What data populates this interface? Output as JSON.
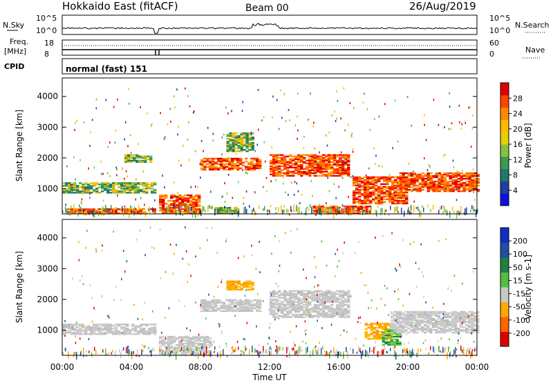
{
  "header": {
    "station": "Hokkaido East (fitACF)",
    "beam": "Beam 00",
    "date": "26/Aug/2019"
  },
  "top_panels": {
    "nsky_label": "N.Sky",
    "nsky_ticks": [
      "10^5",
      "10^0"
    ],
    "nsearch_label": "N.Search",
    "nsearch_ticks": [
      "10^5",
      "10^0"
    ],
    "freq_label_line1": "Freq.",
    "freq_label_line2": "[MHz]",
    "freq_ticks": [
      "18",
      "8"
    ],
    "nave_label": "Nave",
    "nave_ticks": [
      "60",
      "0"
    ],
    "cpid_label": "CPID",
    "cpid_value": "normal (fast) 151"
  },
  "chart_data": [
    {
      "type": "heatmap",
      "name": "power-panel",
      "ylabel": "Slant Range [km]",
      "yticks": [
        1000,
        2000,
        3000,
        4000
      ],
      "ylim": [
        180,
        4600
      ],
      "colorbar_label": "Power [dB]",
      "colorbar_ticks": [
        "28",
        "24",
        "20",
        "16",
        "12",
        "8",
        "4"
      ],
      "colorbar_colors": [
        "#e00000",
        "#ff4400",
        "#ff8800",
        "#ffbb00",
        "#e6d000",
        "#88c040",
        "#3a9a50",
        "#1e7a6a",
        "#2040a0",
        "#1010e0"
      ],
      "regions": [
        {
          "t0": 0.3,
          "t1": 5.4,
          "r0": 180,
          "r1": 320,
          "level": "high"
        },
        {
          "t0": 0.0,
          "t1": 5.4,
          "r0": 850,
          "r1": 1180,
          "level": "mid"
        },
        {
          "t0": 3.6,
          "t1": 5.2,
          "r0": 1850,
          "r1": 2100,
          "level": "mid"
        },
        {
          "t0": 5.6,
          "t1": 8.0,
          "r0": 180,
          "r1": 800,
          "level": "high"
        },
        {
          "t0": 8.0,
          "t1": 11.5,
          "r0": 1600,
          "r1": 2000,
          "level": "high"
        },
        {
          "t0": 9.5,
          "t1": 11.0,
          "r0": 2200,
          "r1": 2800,
          "level": "mid"
        },
        {
          "t0": 12.0,
          "t1": 16.6,
          "r0": 1400,
          "r1": 2100,
          "level": "high"
        },
        {
          "t0": 14.5,
          "t1": 17.8,
          "r0": 180,
          "r1": 450,
          "level": "high"
        },
        {
          "t0": 16.8,
          "t1": 20.0,
          "r0": 500,
          "r1": 1400,
          "level": "high"
        },
        {
          "t0": 19.5,
          "t1": 24.0,
          "r0": 900,
          "r1": 1500,
          "level": "high"
        },
        {
          "t0": 8.8,
          "t1": 10.2,
          "r0": 180,
          "r1": 400,
          "level": "mid"
        }
      ]
    },
    {
      "type": "heatmap",
      "name": "velocity-panel",
      "ylabel": "Slant Range [km]",
      "yticks": [
        1000,
        2000,
        3000,
        4000
      ],
      "ylim": [
        180,
        4600
      ],
      "colorbar_label": "Velocity [m s-1]",
      "colorbar_ticks": [
        "200",
        "100",
        "50",
        "15",
        "-15",
        "-50",
        "-100",
        "-200"
      ],
      "colorbar_colors": [
        "#1030c0",
        "#2050a0",
        "#208040",
        "#50c040",
        "#c8c8c8",
        "#ffaa00",
        "#ff6600",
        "#e00000"
      ],
      "regions": [
        {
          "t0": 0.0,
          "t1": 5.4,
          "r0": 850,
          "r1": 1180,
          "level": "gray"
        },
        {
          "t0": 5.6,
          "t1": 8.5,
          "r0": 180,
          "r1": 800,
          "level": "gray"
        },
        {
          "t0": 8.0,
          "t1": 11.5,
          "r0": 1600,
          "r1": 2000,
          "level": "gray"
        },
        {
          "t0": 9.5,
          "t1": 11.0,
          "r0": 2300,
          "r1": 2600,
          "level": "orange"
        },
        {
          "t0": 12.0,
          "t1": 16.6,
          "r0": 1400,
          "r1": 2300,
          "level": "gray"
        },
        {
          "t0": 17.5,
          "t1": 19.0,
          "r0": 700,
          "r1": 1200,
          "level": "orange"
        },
        {
          "t0": 18.5,
          "t1": 19.5,
          "r0": 500,
          "r1": 1000,
          "level": "green"
        },
        {
          "t0": 19.0,
          "t1": 24.0,
          "r0": 900,
          "r1": 1600,
          "level": "gray"
        }
      ]
    }
  ],
  "x_axis": {
    "ticks": [
      "00:00",
      "04:00",
      "08:00",
      "12:00",
      "16:00",
      "20:00",
      "00:00"
    ],
    "label": "Time UT",
    "range_hours": [
      0,
      24
    ]
  }
}
